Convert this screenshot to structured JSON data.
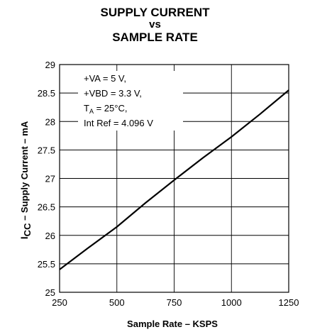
{
  "chart_data": {
    "type": "line",
    "title": "SUPPLY CURRENT",
    "title_line2": "vs",
    "title_line3": "SAMPLE RATE",
    "xlabel": "Sample Rate – KSPS",
    "ylabel": {
      "prefix": "I",
      "subscript": "CC",
      "suffix": "  – Supply Current – mA"
    },
    "xlim": [
      250,
      1250
    ],
    "ylim": [
      25,
      29
    ],
    "x_ticks": [
      250,
      500,
      750,
      1000,
      1250
    ],
    "y_ticks": [
      25,
      25.5,
      26,
      26.5,
      27,
      27.5,
      28,
      28.5,
      29
    ],
    "x_tick_labels": [
      "250",
      "500",
      "750",
      "1000",
      "1250"
    ],
    "y_tick_labels": [
      "25",
      "25.5",
      "26",
      "26.5",
      "27",
      "27.5",
      "28",
      "28.5",
      "29"
    ],
    "grid": true,
    "series": [
      {
        "x": [
          250,
          375,
          500,
          625,
          750,
          875,
          1000,
          1125,
          1250
        ],
        "y": [
          25.4,
          25.78,
          26.15,
          26.57,
          26.97,
          27.36,
          27.73,
          28.13,
          28.55
        ]
      }
    ],
    "annotation": {
      "placement": "top-left",
      "line1": "+VA = 5 V,",
      "line2": "+VBD = 3.3 V,",
      "line3_prefix": "T",
      "line3_sub": "A",
      "line3_suffix": " = 25°C,",
      "line4": "Int Ref  = 4.096 V"
    },
    "colors": {
      "line": "#000000",
      "grid": "#000000",
      "background": "#ffffff"
    }
  }
}
